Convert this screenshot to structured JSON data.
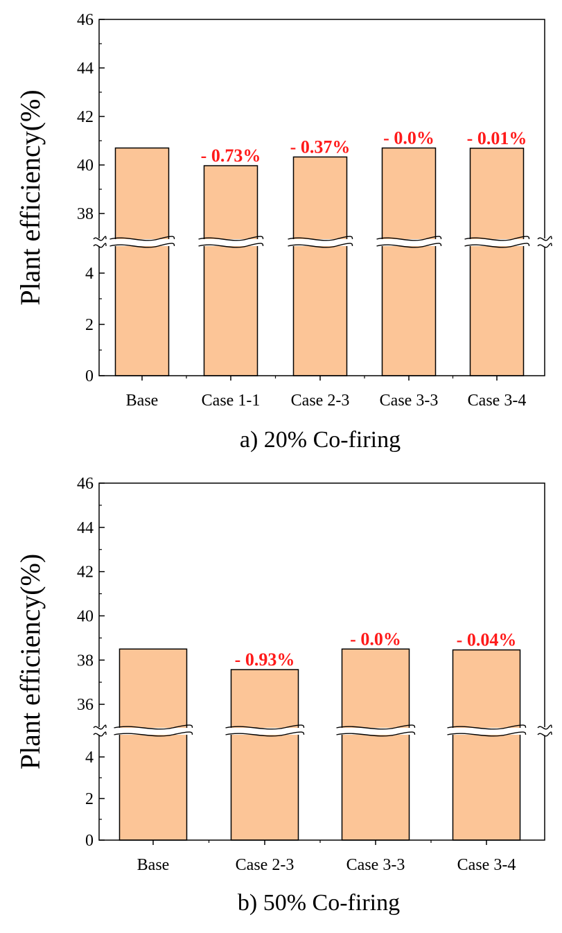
{
  "colors": {
    "bar_fill": "#fcc597",
    "bar_stroke": "#000000",
    "annotation": "#ff1a1a",
    "axis": "#000000"
  },
  "chart_data": [
    {
      "type": "bar",
      "caption": "a) 20% Co-firing",
      "ylabel": "Plant efficiency(%)",
      "categories": [
        "Base",
        "Case 1-1",
        "Case 2-3",
        "Case 3-3",
        "Case 3-4"
      ],
      "values": [
        40.7,
        39.97,
        40.33,
        40.7,
        40.69
      ],
      "annotations": [
        "",
        "- 0.73%",
        "- 0.37%",
        "- 0.0%",
        "- 0.01%"
      ],
      "axis_break": true,
      "lower_ylim": [
        0,
        5
      ],
      "lower_ticks": [
        "0",
        "2",
        "4"
      ],
      "upper_ylim": [
        37,
        46
      ],
      "upper_ticks": [
        "38",
        "40",
        "42",
        "44",
        "46"
      ]
    },
    {
      "type": "bar",
      "caption": "b) 50% Co-firing",
      "ylabel": "Plant efficiency(%)",
      "categories": [
        "Base",
        "Case 2-3",
        "Case 3-3",
        "Case 3-4"
      ],
      "values": [
        38.5,
        37.57,
        38.5,
        38.46
      ],
      "annotations": [
        "",
        "- 0.93%",
        "- 0.0%",
        "- 0.04%"
      ],
      "axis_break": true,
      "lower_ylim": [
        0,
        5
      ],
      "lower_ticks": [
        "0",
        "2",
        "4"
      ],
      "upper_ylim": [
        35,
        46
      ],
      "upper_ticks": [
        "36",
        "38",
        "40",
        "42",
        "44",
        "46"
      ]
    }
  ]
}
